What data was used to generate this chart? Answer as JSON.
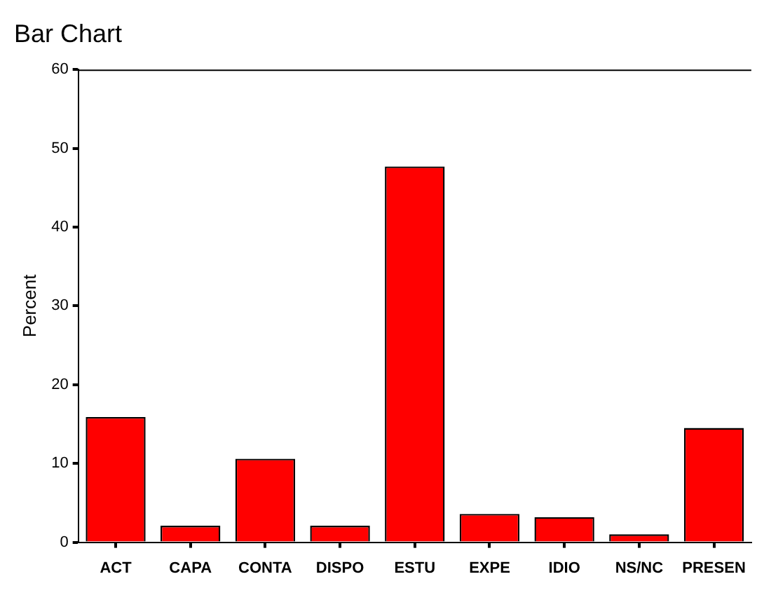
{
  "chart_data": {
    "type": "bar",
    "title": "Bar Chart",
    "ylabel": "Percent",
    "categories": [
      "ACT",
      "CAPA",
      "CONTA",
      "DISPO",
      "ESTU",
      "EXPE",
      "IDIO",
      "NS/NC",
      "PRESEN"
    ],
    "values": [
      15.9,
      2.1,
      10.6,
      2.1,
      47.7,
      3.6,
      3.2,
      1.0,
      14.5
    ],
    "color": "#ff0000",
    "ylim": [
      0,
      60
    ],
    "yticks": [
      0,
      10,
      20,
      30,
      40,
      50,
      60
    ],
    "grid": false,
    "legend": false
  }
}
